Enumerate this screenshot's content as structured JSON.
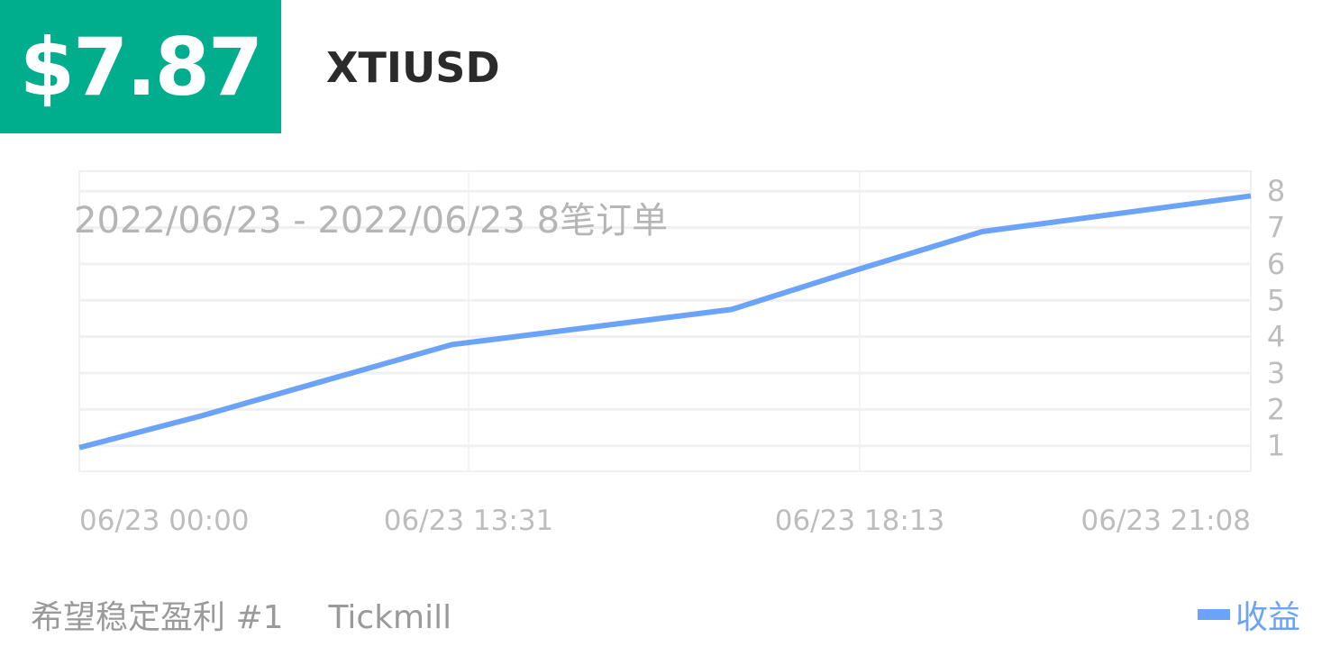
{
  "header": {
    "profit": "$7.87",
    "symbol": "XTIUSD",
    "accent_color": "#00ae8e"
  },
  "footer": {
    "strategy": "希望稳定盈利 #1",
    "broker": "Tickmill"
  },
  "chart_data": {
    "type": "line",
    "title": "2022/06/23 - 2022/06/23  8笔订单",
    "x_tick_labels": [
      "06/23 00:00",
      "06/23 13:31",
      "06/23 18:13",
      "06/23 21:08"
    ],
    "y_ticks": [
      1,
      2,
      3,
      4,
      5,
      6,
      7,
      8
    ],
    "y_axis_position": "right",
    "ylim": [
      0.3,
      8.55
    ],
    "grid": true,
    "legend_position": "bottom-right",
    "series": [
      {
        "name": "收益",
        "color": "#6aa3f8",
        "values": [
          0.95,
          1.82,
          2.81,
          3.78,
          4.75,
          5.84,
          6.89,
          7.87
        ]
      }
    ]
  }
}
